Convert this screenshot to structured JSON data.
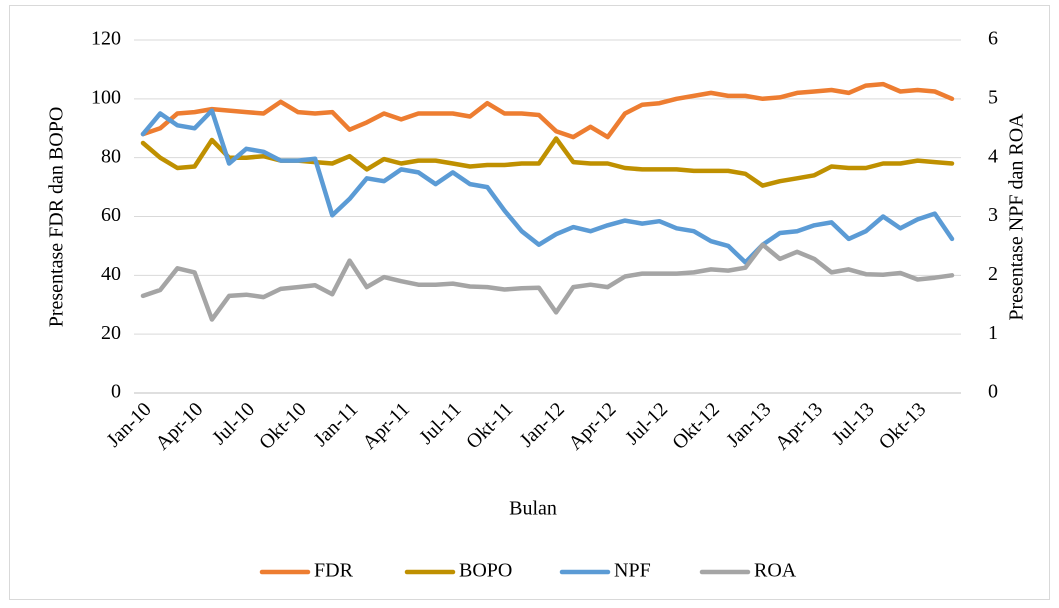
{
  "chart_data": {
    "type": "line",
    "x_label": "Bulan",
    "y_label": "Presentase FDR dan BOPO",
    "y2_label": "Presentase NPF dan ROA",
    "categories": [
      "Jan-10",
      null,
      null,
      "Apr-10",
      null,
      null,
      "Jul-10",
      null,
      null,
      "Okt-10",
      null,
      null,
      "Jan-11",
      null,
      null,
      "Apr-11",
      null,
      null,
      "Jul-11",
      null,
      null,
      "Okt-11",
      null,
      null,
      "Jan-12",
      null,
      null,
      "Apr-12",
      null,
      null,
      "Jul-12",
      null,
      null,
      "Okt-12",
      null,
      null,
      "Jan-13",
      null,
      null,
      "Apr-13",
      null,
      null,
      "Jul-13",
      null,
      null,
      "Okt-13",
      null,
      null
    ],
    "ylim": [
      0,
      120
    ],
    "yticks": [
      0,
      20,
      40,
      60,
      80,
      100,
      120
    ],
    "y2lim": [
      0,
      6
    ],
    "y2ticks": [
      0,
      1,
      2,
      3,
      4,
      5,
      6
    ],
    "legend": "bottom",
    "series": [
      {
        "name": "FDR",
        "color": "#ed7d31",
        "values": [
          88,
          90,
          95,
          95.5,
          96.5,
          96,
          95.5,
          95,
          99,
          95.5,
          95,
          95.5,
          89.5,
          92,
          95,
          93,
          95,
          95,
          95,
          94,
          98.5,
          95,
          95,
          94.5,
          89,
          87,
          90.5,
          87,
          95,
          98,
          98.5,
          100,
          101,
          102,
          101,
          101,
          100,
          100.5,
          102,
          102.5,
          103,
          102,
          104.5,
          105,
          102.5,
          103,
          102.5,
          100
        ]
      },
      {
        "name": "BOPO",
        "color": "#bf9000",
        "values": [
          85,
          80,
          76.5,
          77,
          86,
          80,
          80,
          80.5,
          79,
          79,
          78.5,
          78,
          80.5,
          76,
          79.5,
          78,
          79,
          79,
          78,
          77,
          77.5,
          77.5,
          78,
          78,
          86.5,
          78.5,
          78,
          78,
          76.5,
          76,
          76,
          76,
          75.5,
          75.5,
          75.5,
          74.5,
          70.5,
          72,
          73,
          74,
          77,
          76.5,
          76.5,
          78,
          78,
          79,
          78.5,
          78
        ]
      },
      {
        "name": "NPF",
        "color": "#5b9bd5",
        "axis": "y2",
        "values": [
          4.4,
          4.75,
          4.55,
          4.5,
          4.8,
          3.9,
          4.15,
          4.1,
          3.95,
          3.95,
          3.98,
          3.02,
          3.3,
          3.65,
          3.6,
          3.8,
          3.75,
          3.55,
          3.75,
          3.55,
          3.5,
          3.1,
          2.75,
          2.52,
          2.7,
          2.82,
          2.75,
          2.85,
          2.93,
          2.88,
          2.92,
          2.8,
          2.75,
          2.58,
          2.5,
          2.22,
          2.52,
          2.72,
          2.75,
          2.85,
          2.9,
          2.62,
          2.75,
          3.0,
          2.8,
          2.95,
          3.05,
          2.62
        ]
      },
      {
        "name": "ROA",
        "color": "#a5a5a5",
        "axis": "y2",
        "values": [
          1.65,
          1.75,
          2.12,
          2.05,
          1.25,
          1.65,
          1.67,
          1.63,
          1.77,
          1.8,
          1.83,
          1.68,
          2.25,
          1.8,
          1.97,
          1.9,
          1.84,
          1.84,
          1.86,
          1.81,
          1.8,
          1.76,
          1.78,
          1.79,
          1.37,
          1.8,
          1.84,
          1.8,
          1.98,
          2.03,
          2.03,
          2.03,
          2.05,
          2.1,
          2.08,
          2.13,
          2.52,
          2.28,
          2.4,
          2.28,
          2.05,
          2.1,
          2.02,
          2.01,
          2.04,
          1.93,
          1.96,
          2.0
        ]
      }
    ]
  }
}
